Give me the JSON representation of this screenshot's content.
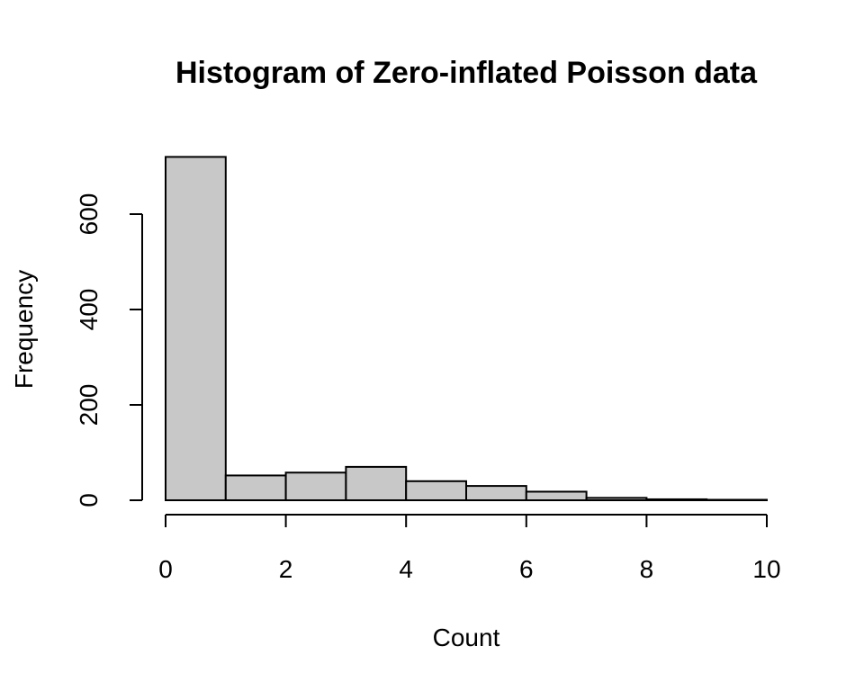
{
  "chart_data": {
    "type": "bar",
    "title": "Histogram of Zero-inflated Poisson data",
    "xlabel": "Count",
    "ylabel": "Frequency",
    "bins": [
      {
        "start": 0,
        "end": 1,
        "value": 720
      },
      {
        "start": 1,
        "end": 2,
        "value": 52
      },
      {
        "start": 2,
        "end": 3,
        "value": 58
      },
      {
        "start": 3,
        "end": 4,
        "value": 70
      },
      {
        "start": 4,
        "end": 5,
        "value": 40
      },
      {
        "start": 5,
        "end": 6,
        "value": 30
      },
      {
        "start": 6,
        "end": 7,
        "value": 18
      },
      {
        "start": 7,
        "end": 8,
        "value": 5
      },
      {
        "start": 8,
        "end": 9,
        "value": 2
      },
      {
        "start": 9,
        "end": 10,
        "value": 1
      }
    ],
    "xlim": [
      0,
      10
    ],
    "ylim": [
      0,
      720
    ],
    "x_ticks": [
      0,
      2,
      4,
      6,
      8,
      10
    ],
    "x_tick_labels": [
      "0",
      "2",
      "4",
      "6",
      "8",
      "10"
    ],
    "y_ticks": [
      0,
      200,
      400,
      600
    ],
    "y_tick_labels": [
      "0",
      "200",
      "400",
      "600"
    ],
    "bar_color": "#c8c8c8",
    "edge_color": "#000000",
    "grid": false
  }
}
